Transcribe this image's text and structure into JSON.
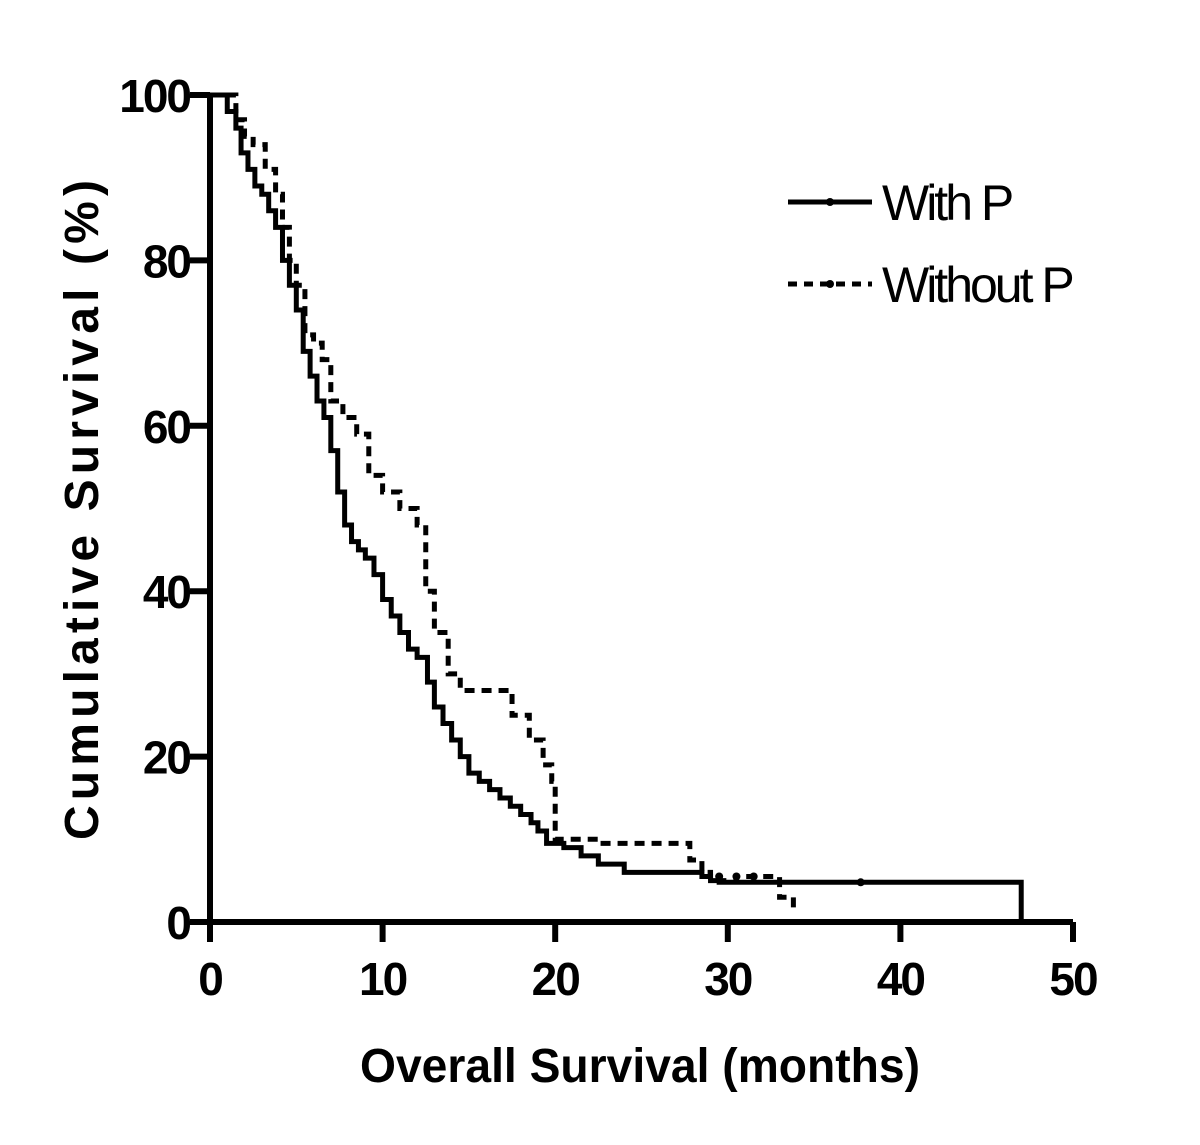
{
  "chart_data": {
    "type": "line",
    "subtype": "kaplan-meier step",
    "title": "",
    "xlabel": "Overall Survival (months)",
    "ylabel": "Cumulative Survival (%)",
    "xlim": [
      0,
      50
    ],
    "ylim": [
      0,
      100
    ],
    "x_ticks": [
      0,
      10,
      20,
      30,
      40,
      50
    ],
    "y_ticks": [
      0,
      20,
      40,
      60,
      80,
      100
    ],
    "grid": false,
    "legend_position": "top-right",
    "series": [
      {
        "name": "With P",
        "line_style": "solid",
        "color": "#000000",
        "x": [
          0,
          1.0,
          1.5,
          1.8,
          2.2,
          2.6,
          3.0,
          3.4,
          3.8,
          4.2,
          4.6,
          5.0,
          5.4,
          5.8,
          6.2,
          6.6,
          7.0,
          7.4,
          7.8,
          8.2,
          8.6,
          9.0,
          9.5,
          10.0,
          10.5,
          11.0,
          11.5,
          12.0,
          12.6,
          13.0,
          13.5,
          14.0,
          14.5,
          15.0,
          15.6,
          16.2,
          16.8,
          17.4,
          18.0,
          18.6,
          19.0,
          19.5,
          20.5,
          21.5,
          22.5,
          24.0,
          27.5,
          28.5,
          29.0,
          29.5,
          30.0,
          47.0
        ],
        "y": [
          100,
          98,
          96,
          93,
          91,
          89,
          88,
          86,
          84,
          80,
          77,
          74,
          69,
          66,
          63,
          61,
          57,
          52,
          48,
          46,
          45,
          44,
          42,
          39,
          37,
          35,
          33,
          32,
          29,
          26,
          24,
          22,
          20,
          18,
          17,
          16,
          15,
          14,
          13,
          12,
          11,
          9.5,
          9,
          8,
          7,
          6,
          6,
          5.5,
          5,
          4.8,
          4.8,
          0
        ],
        "censor_x": [
          37.7
        ],
        "censor_y": [
          4.8
        ]
      },
      {
        "name": "Without P",
        "line_style": "dashed",
        "color": "#000000",
        "x": [
          0,
          1.5,
          2.0,
          2.5,
          3.2,
          3.8,
          4.2,
          4.6,
          5.0,
          5.5,
          6.0,
          6.5,
          7.0,
          7.7,
          8.5,
          9.2,
          10.0,
          11.0,
          12.0,
          12.5,
          13.0,
          13.8,
          14.5,
          17.5,
          18.5,
          19.3,
          19.8,
          20.0,
          22.5,
          27.8,
          28.5,
          29.0,
          30.5,
          31.5,
          32.2,
          33.0,
          33.8
        ],
        "y": [
          100,
          97,
          95,
          94,
          91,
          88,
          84,
          80,
          77,
          71,
          70,
          68,
          63,
          61,
          59,
          54,
          52,
          50,
          48,
          40,
          35,
          30,
          28,
          25,
          22,
          19,
          17,
          10,
          9.5,
          7.5,
          6,
          5,
          5.5,
          5.5,
          5.5,
          3,
          1.5
        ],
        "censor_x": [
          29.5,
          30.5,
          31.5
        ],
        "censor_y": [
          5.5,
          5.5,
          5.5
        ]
      }
    ]
  }
}
